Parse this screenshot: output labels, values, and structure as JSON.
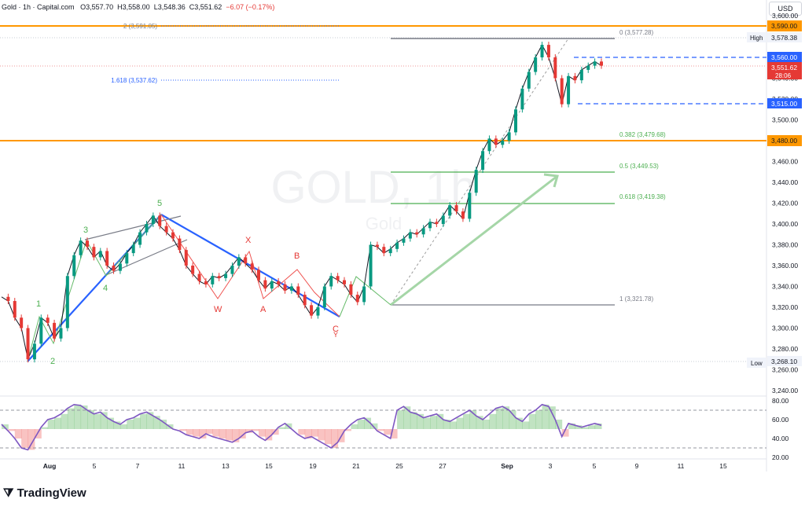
{
  "header": {
    "symbol": "Gold · 1h · Capital.com",
    "open": "O3,557.70",
    "high": "H3,558.00",
    "low": "L3,548.36",
    "close": "C3,551.62",
    "change": "−6.07 (−0.17%)"
  },
  "currency_label": "USD",
  "brand": "TradingView",
  "watermark": {
    "title": "GOLD, 1h",
    "subtitle": "Gold"
  },
  "colors": {
    "up": "#089981",
    "down": "#e53935",
    "blue": "#2962ff",
    "orange": "#ff9800",
    "rsi": "#7e57c2",
    "green_line": "#4caf50"
  },
  "chart_data": [
    {
      "type": "line",
      "title": "GOLD, 1h",
      "price_axis": {
        "ylim": [
          3240,
          3600
        ],
        "ticks": [
          "3,600.00",
          "3,580.00",
          "3,560.00",
          "3,540.00",
          "3,520.00",
          "3,500.00",
          "3,480.00",
          "3,460.00",
          "3,440.00",
          "3,420.00",
          "3,400.00",
          "3,380.00",
          "3,360.00",
          "3,340.00",
          "3,320.00",
          "3,300.00",
          "3,280.00",
          "3,260.00",
          "3,240.00"
        ]
      },
      "time_axis": {
        "ticks": [
          "Aug",
          "5",
          "7",
          "11",
          "13",
          "15",
          "19",
          "21",
          "25",
          "27",
          "Sep",
          "3",
          "5",
          "9",
          "11",
          "15"
        ]
      },
      "series": [
        {
          "values": [
            3330,
            3326,
            3310,
            3300,
            3270,
            3285,
            3310,
            3305,
            3290,
            3300,
            3350,
            3370,
            3384,
            3378,
            3368,
            3374,
            3360,
            3355,
            3362,
            3372,
            3380,
            3392,
            3400,
            3408,
            3398,
            3392,
            3386,
            3375,
            3360,
            3352,
            3345,
            3342,
            3350,
            3348,
            3352,
            3360,
            3368,
            3362,
            3356,
            3346,
            3338,
            3345,
            3342,
            3336,
            3340,
            3332,
            3322,
            3312,
            3320,
            3340,
            3350,
            3346,
            3342,
            3332,
            3325,
            3340,
            3380,
            3378,
            3372,
            3376,
            3382,
            3386,
            3392,
            3390,
            3396,
            3402,
            3400,
            3408,
            3418,
            3412,
            3405,
            3430,
            3452,
            3470,
            3482,
            3476,
            3480,
            3488,
            3510,
            3530,
            3546,
            3560,
            3572,
            3560,
            3540,
            3515,
            3542,
            3538,
            3548,
            3552,
            3556,
            3552
          ]
        }
      ],
      "price_labels": {
        "high": "High",
        "high_value": "3,578.38",
        "low": "Low",
        "low_value": "3,268.10",
        "current": "3,551.62",
        "countdown": "28:06",
        "blue1": "3,560.00",
        "blue2": "3,515.00",
        "orange_top": "3,590.00",
        "orange_mid": "3,480.00"
      },
      "fib_labels": {
        "f0": "0 (3,577.28)",
        "f382": "0.382 (3,479.68)",
        "f5": "0.5 (3,449.53)",
        "f618": "0.618 (3,419.38)",
        "f1": "1 (3,321.78)",
        "ext1618": "1.618 (3,537.62)",
        "ext2": "2 (3,591.05)"
      },
      "wave_labels": {
        "w1": "1",
        "w2": "2",
        "w3": "3",
        "w4": "4",
        "w5": "5",
        "W": "W",
        "X": "X",
        "Y": "Y",
        "A": "A",
        "B": "B",
        "C": "C"
      }
    },
    {
      "type": "line",
      "title": "",
      "ylim": [
        20,
        80
      ],
      "ticks": [
        "80.00",
        "60.00",
        "40.00",
        "20.00"
      ],
      "bands": [
        70,
        30
      ],
      "series": [
        {
          "values": [
            55,
            48,
            40,
            30,
            28,
            40,
            52,
            60,
            62,
            66,
            72,
            76,
            75,
            70,
            66,
            68,
            62,
            58,
            55,
            60,
            62,
            66,
            68,
            64,
            60,
            55,
            50,
            48,
            44,
            42,
            40,
            45,
            42,
            40,
            38,
            36,
            40,
            46,
            48,
            42,
            38,
            44,
            52,
            56,
            50,
            44,
            40,
            42,
            38,
            34,
            30,
            36,
            48,
            55,
            60,
            62,
            56,
            48,
            44,
            40,
            70,
            74,
            68,
            66,
            62,
            64,
            66,
            60,
            58,
            62,
            66,
            70,
            64,
            60,
            66,
            72,
            74,
            70,
            62,
            58,
            66,
            70,
            76,
            74,
            60,
            42,
            56,
            54,
            52,
            54,
            56,
            54
          ]
        }
      ]
    }
  ]
}
